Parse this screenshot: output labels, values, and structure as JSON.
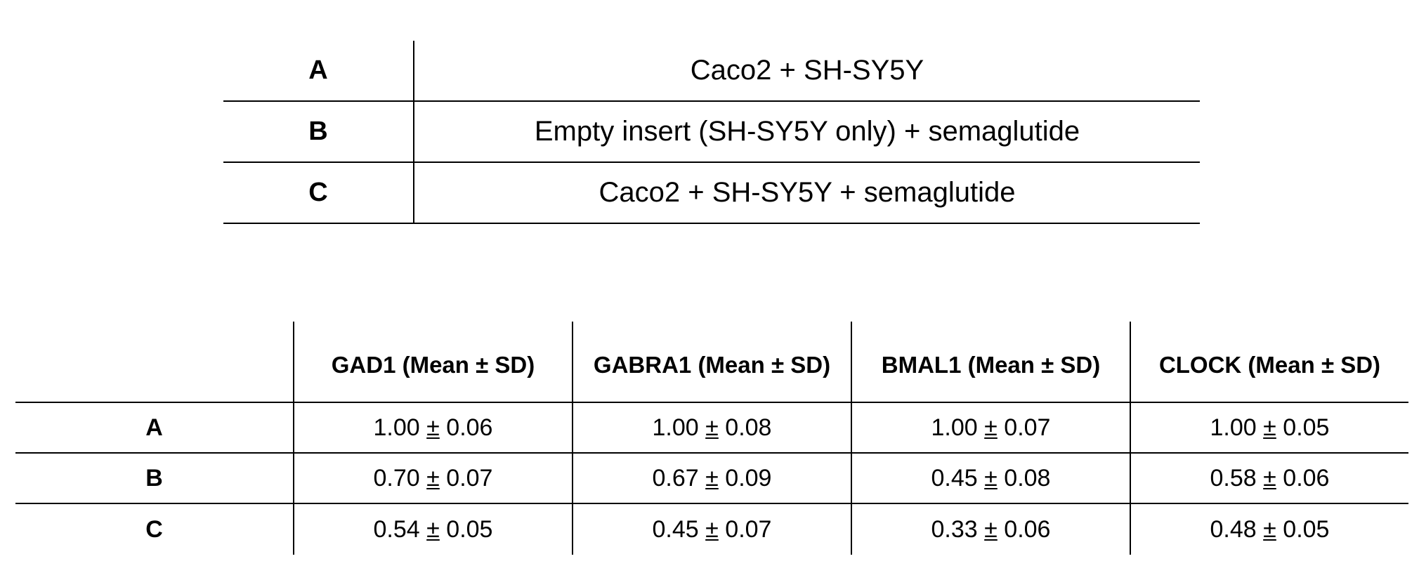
{
  "legend": {
    "rows": [
      {
        "key": "A",
        "description": "Caco2 + SH-SY5Y"
      },
      {
        "key": "B",
        "description": "Empty insert (SH-SY5Y only) + semaglutide"
      },
      {
        "key": "C",
        "description": "Caco2 + SH-SY5Y + semaglutide"
      }
    ]
  },
  "results": {
    "corner": "",
    "columns": [
      "GAD1 (Mean ± SD)",
      "GABRA1 (Mean ± SD)",
      "BMAL1 (Mean ± SD)",
      "CLOCK (Mean ± SD)"
    ],
    "pm_symbol": "±",
    "rows": [
      {
        "label": "A",
        "cells": [
          {
            "mean": "1.00",
            "sd": "0.06"
          },
          {
            "mean": "1.00",
            "sd": "0.08"
          },
          {
            "mean": "1.00",
            "sd": "0.07"
          },
          {
            "mean": "1.00",
            "sd": "0.05"
          }
        ]
      },
      {
        "label": "B",
        "cells": [
          {
            "mean": "0.70",
            "sd": "0.07"
          },
          {
            "mean": "0.67",
            "sd": "0.09"
          },
          {
            "mean": "0.45",
            "sd": "0.08"
          },
          {
            "mean": "0.58",
            "sd": "0.06"
          }
        ]
      },
      {
        "label": "C",
        "cells": [
          {
            "mean": "0.54",
            "sd": "0.05"
          },
          {
            "mean": "0.45",
            "sd": "0.07"
          },
          {
            "mean": "0.33",
            "sd": "0.06"
          },
          {
            "mean": "0.48",
            "sd": "0.05"
          }
        ]
      }
    ]
  }
}
